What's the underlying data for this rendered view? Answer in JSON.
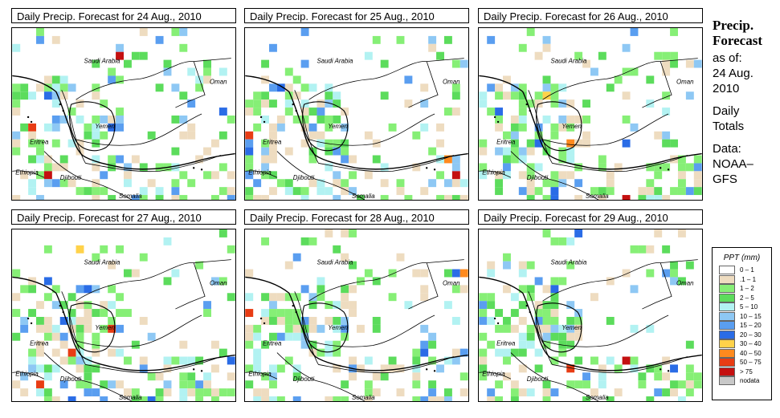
{
  "panels": [
    {
      "title": "Daily Precip. Forecast for  24 Aug., 2010"
    },
    {
      "title": "Daily Precip. Forecast for  25 Aug., 2010"
    },
    {
      "title": "Daily Precip. Forecast for  26 Aug., 2010"
    },
    {
      "title": "Daily Precip. Forecast for  27 Aug., 2010"
    },
    {
      "title": "Daily Precip. Forecast for  28 Aug., 2010"
    },
    {
      "title": "Daily Precip. Forecast for  29 Aug., 2010"
    }
  ],
  "map_labels": {
    "saudi": "Saudi Arabia",
    "oman": "Oman",
    "yemen": "Yemen",
    "eritrea": "Eritrea",
    "ethiopia": "Ethiopia",
    "djibouti": "Djibouti",
    "somalia": "Somalia"
  },
  "side": {
    "title_line1": "Precip.",
    "title_line2": "Forecast",
    "asof_line1": "as of:",
    "asof_line2": "24 Aug.",
    "asof_line3": "2010",
    "daily_line1": "Daily",
    "daily_line2": "Totals",
    "data_line1": "Data:",
    "data_line2": "NOAA–",
    "data_line3": "GFS"
  },
  "legend": {
    "title": "PPT (mm)",
    "items": [
      {
        "label": "0 – 1",
        "color": "#ffffff"
      },
      {
        "label": ".1 – 1",
        "color": "#eedcc0"
      },
      {
        "label": "1 – 2",
        "color": "#86ef76"
      },
      {
        "label": "2 – 5",
        "color": "#5cdc5c"
      },
      {
        "label": "5 – 10",
        "color": "#b2f2f2"
      },
      {
        "label": "10 – 15",
        "color": "#8ec8f4"
      },
      {
        "label": "15 – 20",
        "color": "#5a9ef0"
      },
      {
        "label": "20 – 30",
        "color": "#2a6ce6"
      },
      {
        "label": "30 – 40",
        "color": "#ffd24a"
      },
      {
        "label": "40 – 50",
        "color": "#ff8a1e"
      },
      {
        "label": "50 – 75",
        "color": "#e83c14"
      },
      {
        "label": "> 75",
        "color": "#c41010"
      },
      {
        "label": "nodata",
        "color": "#c8c8c8"
      }
    ]
  }
}
